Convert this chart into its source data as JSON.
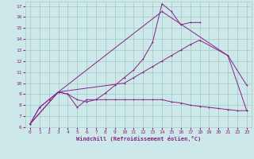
{
  "xlabel": "Windchill (Refroidissement éolien,°C)",
  "background_color": "#cce8e8",
  "line_color": "#882288",
  "grid_color": "#aacccc",
  "xlim": [
    -0.5,
    23.5
  ],
  "ylim": [
    6,
    17.4
  ],
  "xticks": [
    0,
    1,
    2,
    3,
    4,
    5,
    6,
    7,
    8,
    9,
    10,
    11,
    12,
    13,
    14,
    15,
    16,
    17,
    18,
    19,
    20,
    21,
    22,
    23
  ],
  "yticks": [
    6,
    7,
    8,
    9,
    10,
    11,
    12,
    13,
    14,
    15,
    16,
    17
  ],
  "lines": [
    {
      "x": [
        0,
        1,
        2,
        3,
        4,
        5,
        6,
        7,
        8,
        9,
        10,
        11,
        12,
        13,
        14,
        15,
        16,
        17,
        18
      ],
      "y": [
        6.3,
        7.8,
        8.5,
        9.2,
        9.0,
        7.8,
        8.5,
        8.5,
        9.1,
        9.8,
        10.5,
        11.2,
        12.2,
        13.7,
        17.2,
        16.5,
        15.3,
        15.5,
        15.5
      ]
    },
    {
      "x": [
        0,
        3,
        14,
        21,
        23
      ],
      "y": [
        6.3,
        9.2,
        16.5,
        12.5,
        9.8
      ]
    },
    {
      "x": [
        0,
        3,
        10,
        11,
        12,
        13,
        14,
        15,
        16,
        17,
        18,
        21,
        23
      ],
      "y": [
        6.3,
        9.2,
        10.0,
        10.5,
        11.0,
        11.5,
        12.0,
        12.5,
        13.0,
        13.5,
        13.9,
        12.5,
        7.5
      ]
    },
    {
      "x": [
        0,
        1,
        2,
        3,
        4,
        5,
        6,
        7,
        8,
        9,
        10,
        11,
        12,
        13,
        14,
        15,
        16,
        17,
        18,
        19,
        20,
        21,
        22,
        23
      ],
      "y": [
        6.3,
        7.8,
        8.5,
        9.2,
        9.0,
        8.5,
        8.3,
        8.5,
        8.5,
        8.5,
        8.5,
        8.5,
        8.5,
        8.5,
        8.5,
        8.3,
        8.2,
        8.0,
        7.9,
        7.8,
        7.7,
        7.6,
        7.5,
        7.5
      ]
    }
  ]
}
